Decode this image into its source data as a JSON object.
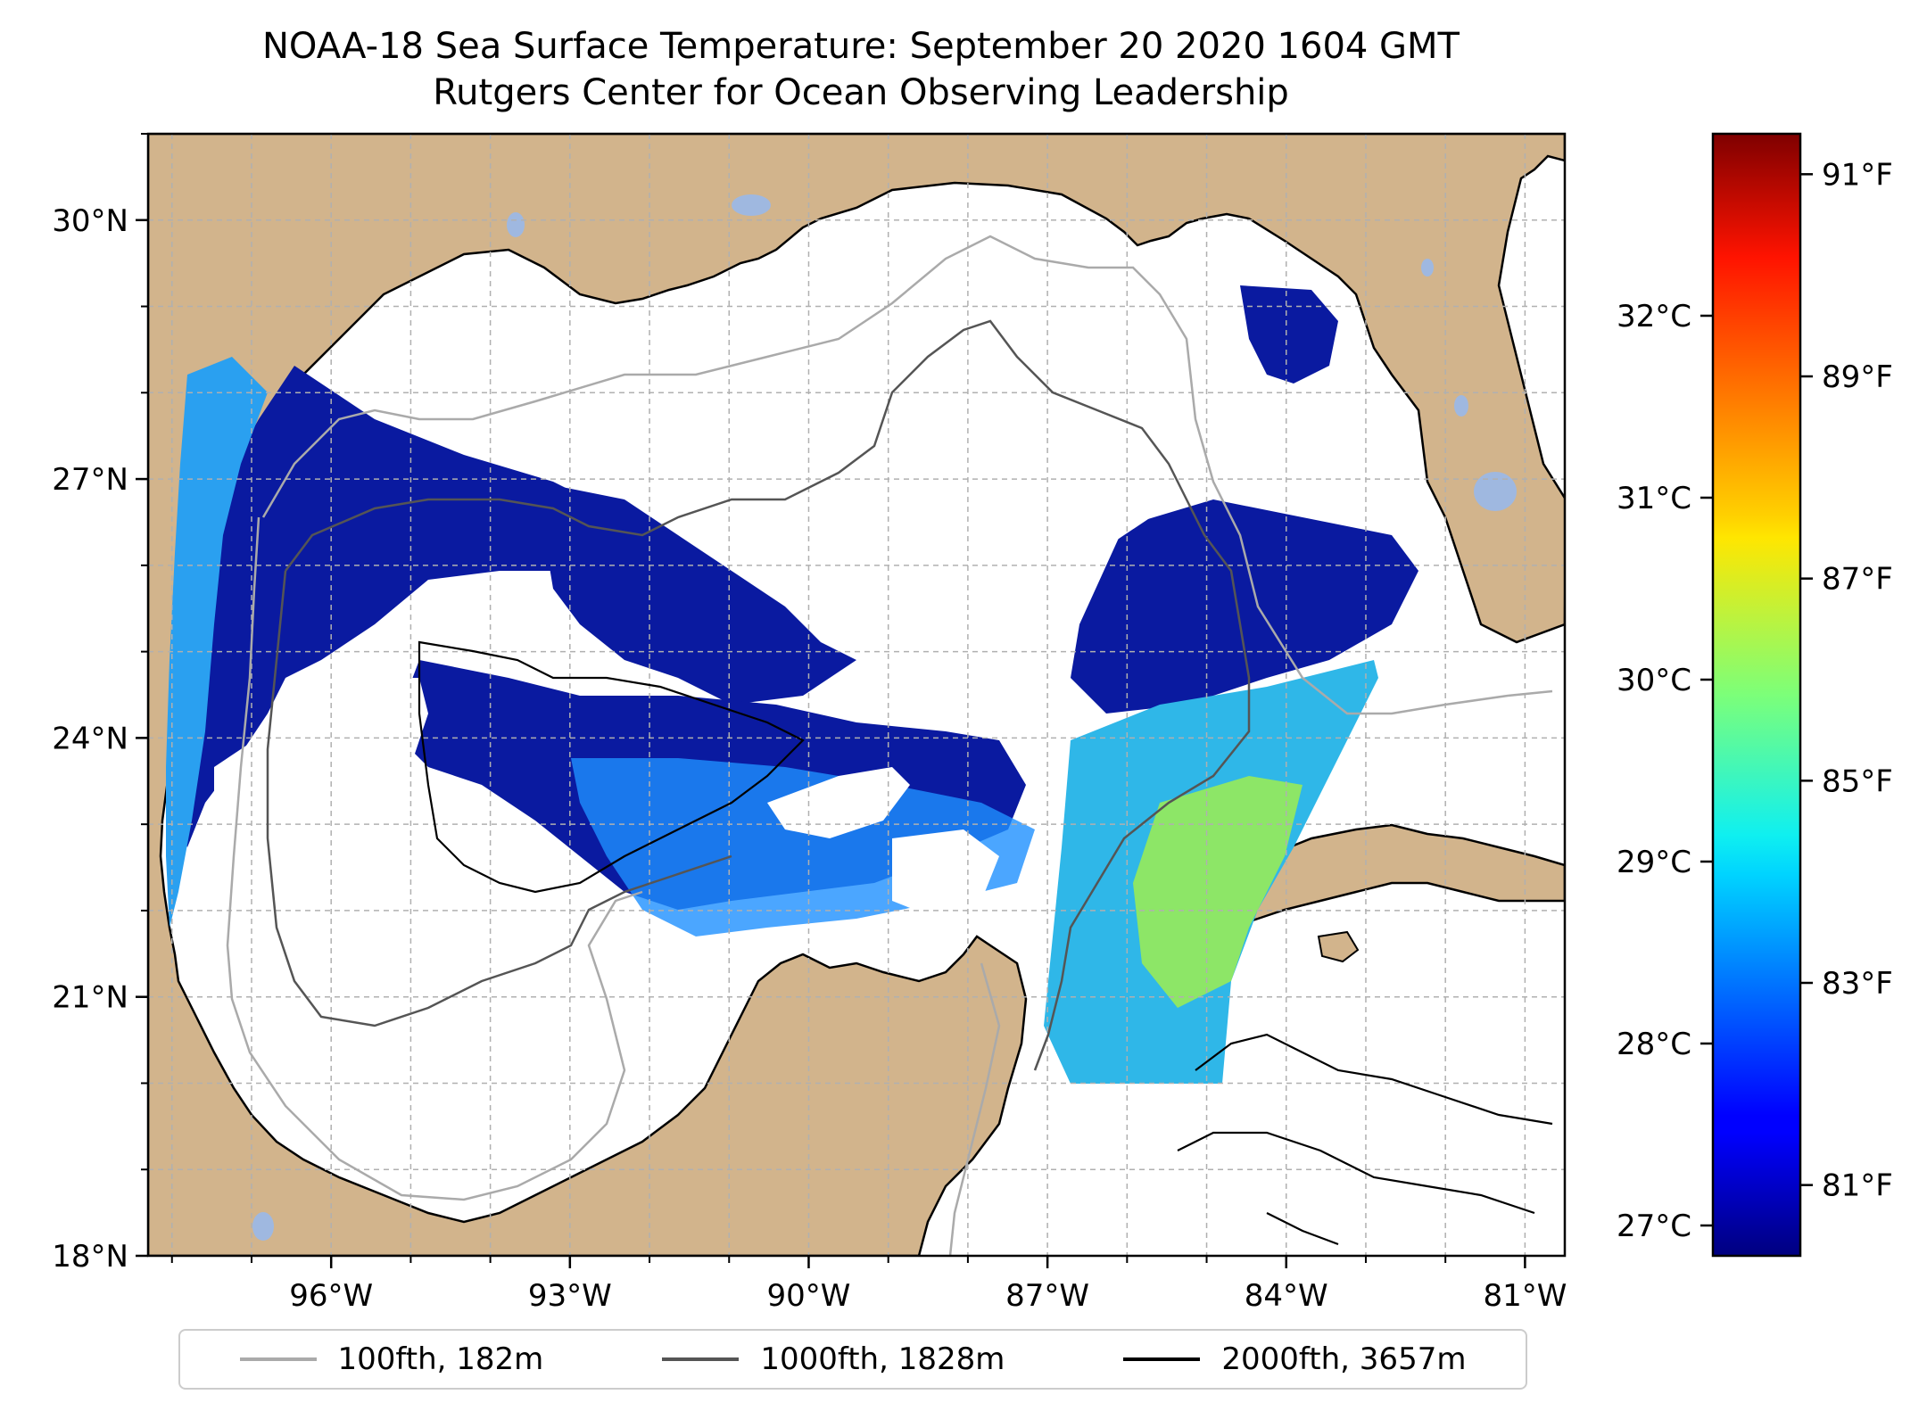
{
  "title": {
    "line1": "NOAA-18 Sea Surface Temperature: September 20 2020 1604 GMT",
    "line2": "Rutgers Center for Ocean Observing Leadership"
  },
  "map": {
    "extent": {
      "lon_min": -98.3,
      "lon_max": -80.5,
      "lat_min": 18.0,
      "lat_max": 31.0
    },
    "lat_ticks": [
      {
        "value": 18,
        "label": "18°N"
      },
      {
        "value": 21,
        "label": "21°N"
      },
      {
        "value": 24,
        "label": "24°N"
      },
      {
        "value": 27,
        "label": "27°N"
      },
      {
        "value": 30,
        "label": "30°N"
      }
    ],
    "lon_ticks": [
      {
        "value": -96,
        "label": "96°W"
      },
      {
        "value": -93,
        "label": "93°W"
      },
      {
        "value": -90,
        "label": "90°W"
      },
      {
        "value": -87,
        "label": "87°W"
      },
      {
        "value": -84,
        "label": "84°W"
      },
      {
        "value": -81,
        "label": "81°W"
      }
    ],
    "gridlines": true,
    "colors": {
      "land": "#d2b48c",
      "ocean_no_data": "#ffffff",
      "lakes": "#9fb8e0",
      "grid": "#b0b0b0"
    }
  },
  "colorbar": {
    "colormap": "jet",
    "range_f": [
      80.3,
      91.4
    ],
    "fahrenheit_ticks": [
      {
        "value": 81,
        "label": "81°F"
      },
      {
        "value": 83,
        "label": "83°F"
      },
      {
        "value": 85,
        "label": "85°F"
      },
      {
        "value": 87,
        "label": "87°F"
      },
      {
        "value": 89,
        "label": "89°F"
      },
      {
        "value": 91,
        "label": "91°F"
      }
    ],
    "celsius_ticks": [
      {
        "value": 27,
        "label": "27°C"
      },
      {
        "value": 28,
        "label": "28°C"
      },
      {
        "value": 29,
        "label": "29°C"
      },
      {
        "value": 30,
        "label": "30°C"
      },
      {
        "value": 31,
        "label": "31°C"
      },
      {
        "value": 32,
        "label": "32°C"
      }
    ]
  },
  "legend": {
    "placement": "bottom-center",
    "items": [
      {
        "label": "100fth, 182m",
        "color": "#aaaaaa"
      },
      {
        "label": "1000fth, 1828m",
        "color": "#555555"
      },
      {
        "label": "2000fth, 3657m",
        "color": "#000000"
      }
    ]
  }
}
